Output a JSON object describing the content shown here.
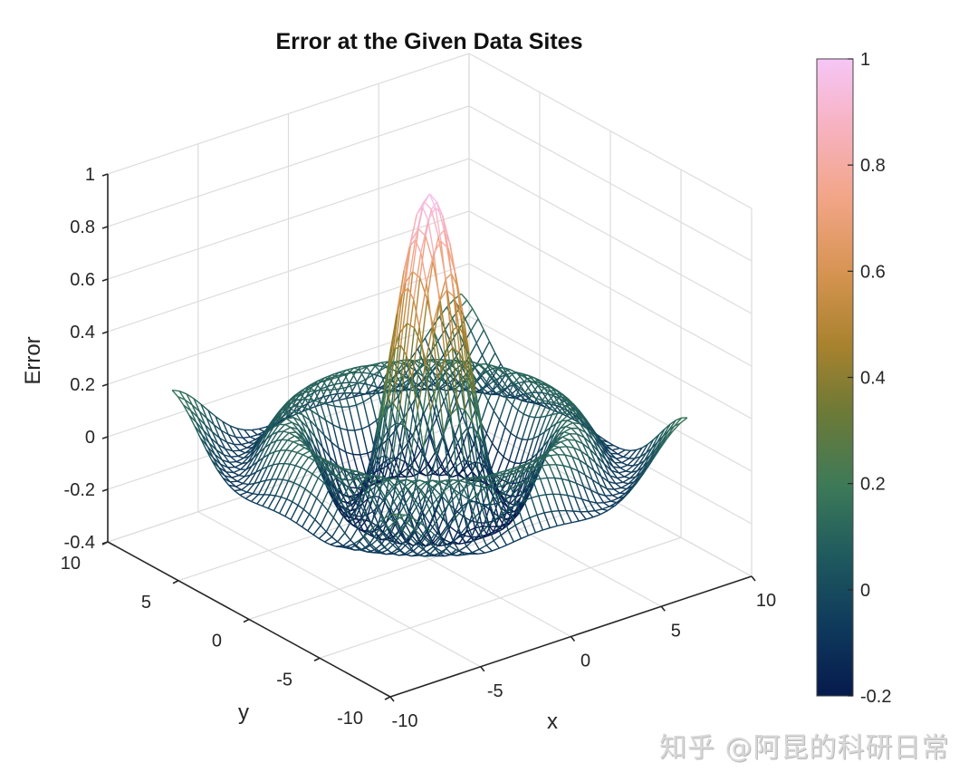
{
  "chart_data": {
    "type": "surface-mesh",
    "title": "Error at the Given Data Sites",
    "xlabel": "x",
    "ylabel": "y",
    "zlabel": "Error",
    "xlim": [
      -10,
      10
    ],
    "ylim": [
      -10,
      10
    ],
    "zlim": [
      -0.4,
      1
    ],
    "xticks": [
      "-10",
      "-5",
      "0",
      "5",
      "10"
    ],
    "yticks": [
      "-10",
      "-5",
      "0",
      "5",
      "10"
    ],
    "zticks": [
      "-0.4",
      "-0.2",
      "0",
      "0.2",
      "0.4",
      "0.6",
      "0.8",
      "1"
    ],
    "grid": true,
    "surface": {
      "function": "sin(r)/r style radial error, r = sqrt(x^2+y^2)",
      "domain": [
        -8,
        8
      ],
      "grid_lines": 41,
      "peak_value": 0.99,
      "peak_location": [
        0,
        0
      ],
      "min_value": -0.22
    },
    "colorbar": {
      "range": [
        -0.2,
        1
      ],
      "ticks": [
        "-0.2",
        "0",
        "0.2",
        "0.4",
        "0.6",
        "0.8",
        "1"
      ],
      "colormap": [
        "#061a4d",
        "#0f3a5c",
        "#1f5a5e",
        "#3d7a58",
        "#7a7a30",
        "#a8822e",
        "#d59350",
        "#f2a586",
        "#f7b3c4",
        "#f6c6f6"
      ]
    }
  },
  "watermark": "知乎 @阿昆的科研日常"
}
